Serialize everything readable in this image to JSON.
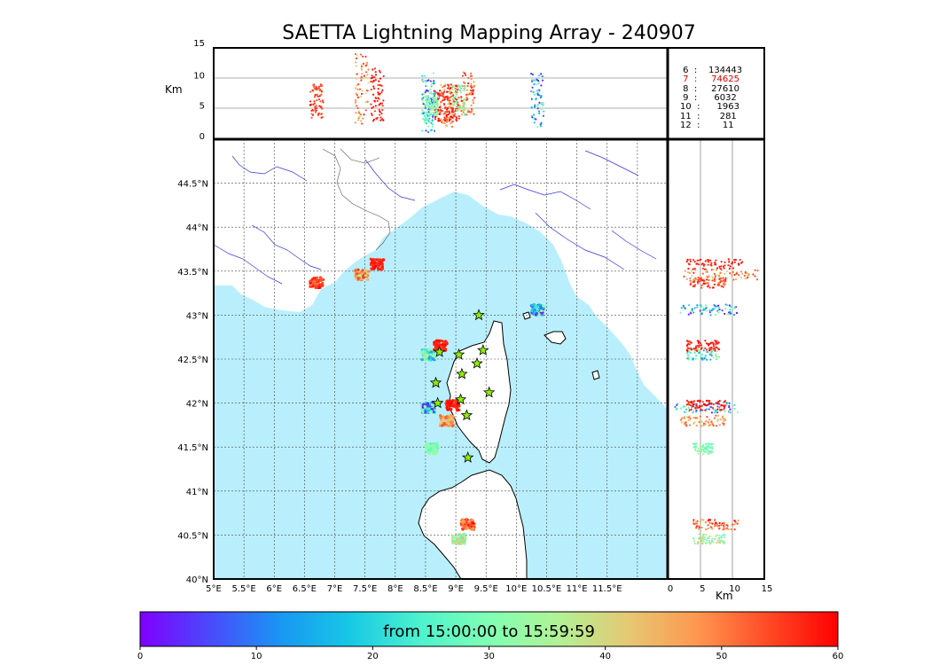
{
  "title": "SAETTA Lightning Mapping Array - 240907",
  "altitude_axis": {
    "label": "Km",
    "ticks": [
      "15",
      "10",
      "5",
      "0"
    ]
  },
  "side_axis": {
    "label": "Km",
    "ticks": [
      "0",
      "5",
      "10",
      "15"
    ]
  },
  "counts": [
    {
      "text": " 6  :    134443",
      "color": "#000000"
    },
    {
      "text": " 7  :     74625",
      "color": "#e00000"
    },
    {
      "text": " 8  :     27610",
      "color": "#000000"
    },
    {
      "text": " 9  :      6032",
      "color": "#000000"
    },
    {
      "text": "10  :      1963",
      "color": "#000000"
    },
    {
      "text": "11  :       281",
      "color": "#000000"
    },
    {
      "text": "12  :        11",
      "color": "#000000"
    }
  ],
  "map": {
    "lat_ticks": [
      "44.5°N",
      "44°N",
      "43.5°N",
      "43°N",
      "42.5°N",
      "42°N",
      "41.5°N",
      "41°N",
      "40.5°N",
      "40°N"
    ],
    "lon_ticks": [
      "5°E",
      "5.5°E",
      "6°E",
      "6.5°E",
      "7°E",
      "7.5°E",
      "8°E",
      "8.5°E",
      "9°E",
      "9.5°E",
      "10°E",
      "10.5°E",
      "11°E",
      "11.5°E"
    ],
    "sea_color": "#b9effc",
    "gridlines": true
  },
  "stations": [
    {
      "lon": 9.38,
      "lat": 43.0
    },
    {
      "lon": 8.73,
      "lat": 42.58
    },
    {
      "lon": 9.05,
      "lat": 42.55
    },
    {
      "lon": 9.45,
      "lat": 42.6
    },
    {
      "lon": 9.35,
      "lat": 42.45
    },
    {
      "lon": 9.1,
      "lat": 42.33
    },
    {
      "lon": 8.67,
      "lat": 42.23
    },
    {
      "lon": 9.55,
      "lat": 42.12
    },
    {
      "lon": 9.08,
      "lat": 42.04
    },
    {
      "lon": 8.7,
      "lat": 42.0
    },
    {
      "lon": 9.18,
      "lat": 41.86
    },
    {
      "lon": 9.2,
      "lat": 41.38
    }
  ],
  "colorbar": {
    "range_text": "from 15:00:00 to 15:59:59",
    "ticks": [
      "0",
      "10",
      "20",
      "30",
      "40",
      "50",
      "60"
    ],
    "colors": [
      "#7f00ff",
      "#4a4afc",
      "#1996f3",
      "#17c8e5",
      "#4cf2ce",
      "#80ffb4",
      "#b2f295",
      "#e5c873",
      "#ff964f",
      "#ff4a26",
      "#ff0000"
    ]
  },
  "chart_data": {
    "type": "scatter",
    "title": "SAETTA Lightning Mapping Array - 240907",
    "xlabel": "",
    "ylabel": "",
    "xlim": [
      5,
      12.5
    ],
    "ylim": [
      40,
      45
    ],
    "color_scale": {
      "label": "from 15:00:00 to 15:59:59",
      "range": [
        0,
        60
      ]
    },
    "altitude_range_km": [
      0,
      15
    ],
    "clusters": [
      {
        "lon": 6.7,
        "lat": 43.37,
        "alt_km": [
          3.5,
          9
        ],
        "time_min": [
          50,
          60
        ]
      },
      {
        "lon": 7.45,
        "lat": 43.46,
        "alt_km": [
          2.5,
          14
        ],
        "time_min": [
          35,
          58
        ]
      },
      {
        "lon": 7.7,
        "lat": 43.58,
        "alt_km": [
          3,
          12
        ],
        "time_min": [
          55,
          60
        ]
      },
      {
        "lon": 10.35,
        "lat": 43.06,
        "alt_km": [
          2,
          11
        ],
        "time_min": [
          0,
          35
        ]
      },
      {
        "lon": 8.55,
        "lat": 42.55,
        "alt_km": [
          3,
          8
        ],
        "time_min": [
          10,
          40
        ]
      },
      {
        "lon": 8.75,
        "lat": 42.65,
        "alt_km": [
          3,
          8
        ],
        "time_min": [
          55,
          60
        ]
      },
      {
        "lon": 8.55,
        "lat": 41.95,
        "alt_km": [
          1,
          11
        ],
        "time_min": [
          0,
          35
        ]
      },
      {
        "lon": 8.85,
        "lat": 41.8,
        "alt_km": [
          2,
          9
        ],
        "time_min": [
          40,
          55
        ]
      },
      {
        "lon": 8.95,
        "lat": 41.97,
        "alt_km": [
          3,
          9
        ],
        "time_min": [
          55,
          60
        ]
      },
      {
        "lon": 8.6,
        "lat": 41.48,
        "alt_km": [
          4,
          7
        ],
        "time_min": [
          25,
          35
        ]
      },
      {
        "lon": 9.2,
        "lat": 40.62,
        "alt_km": [
          4,
          11
        ],
        "time_min": [
          45,
          60
        ]
      },
      {
        "lon": 9.05,
        "lat": 40.45,
        "alt_km": [
          4,
          9
        ],
        "time_min": [
          25,
          45
        ]
      }
    ]
  }
}
